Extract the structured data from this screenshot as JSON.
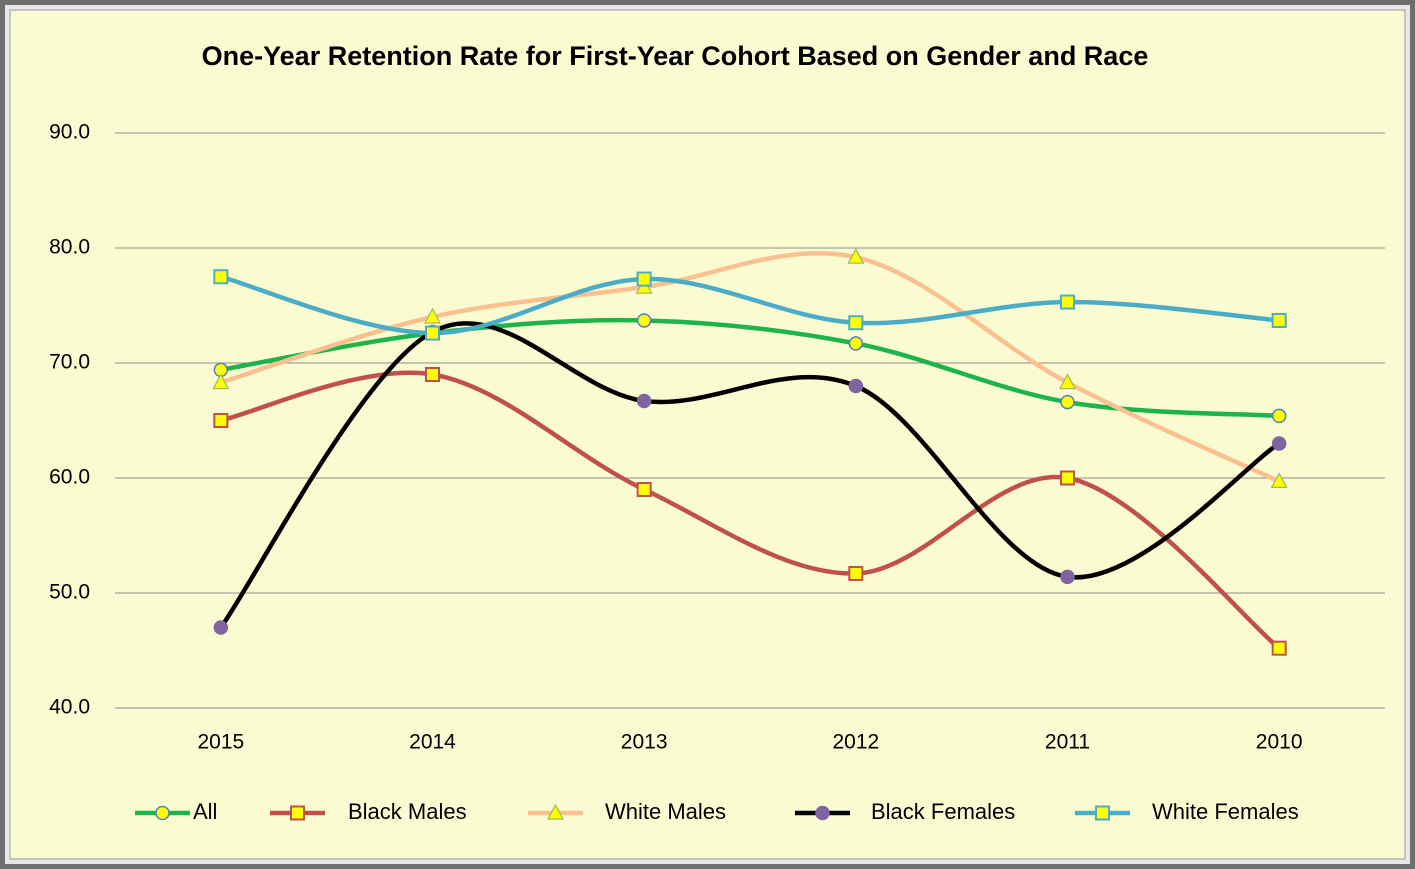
{
  "chart_data": {
    "type": "line",
    "title": "One-Year Retention Rate for First-Year Cohort Based on Gender and Race",
    "categories": [
      "2015",
      "2014",
      "2013",
      "2012",
      "2011",
      "2010"
    ],
    "series": [
      {
        "name": "All",
        "color": "#1fb34b",
        "marker": "circle",
        "marker_fill": "#ffff00",
        "marker_stroke": "#4f81bd",
        "values": [
          69.4,
          72.6,
          73.7,
          71.7,
          66.6,
          65.4
        ]
      },
      {
        "name": "Black Males",
        "color": "#c0504d",
        "marker": "square",
        "marker_fill": "#ffff00",
        "marker_stroke": "#c0504d",
        "values": [
          65.0,
          69.0,
          59.0,
          51.7,
          60.0,
          45.2
        ]
      },
      {
        "name": "White Males",
        "color": "#fac08f",
        "marker": "triangle",
        "marker_fill": "#ffff00",
        "marker_stroke": "#9bbb59",
        "values": [
          68.3,
          74.0,
          76.6,
          79.2,
          68.3,
          59.7
        ]
      },
      {
        "name": "Black Females",
        "color": "#000000",
        "marker": "circle",
        "marker_fill": "#8064a2",
        "marker_stroke": "#8064a2",
        "values": [
          47.0,
          72.7,
          66.7,
          68.0,
          51.4,
          63.0
        ]
      },
      {
        "name": "White Females",
        "color": "#4bacc6",
        "marker": "square",
        "marker_fill": "#ffff00",
        "marker_stroke": "#4bacc6",
        "values": [
          77.5,
          72.6,
          77.3,
          73.5,
          75.3,
          73.7
        ]
      }
    ],
    "ylim": [
      40,
      90
    ],
    "yticks": [
      {
        "value": 40,
        "label": "40.0"
      },
      {
        "value": 50,
        "label": "50.0"
      },
      {
        "value": 60,
        "label": "60.0"
      },
      {
        "value": 70,
        "label": "70.0"
      },
      {
        "value": 80,
        "label": "80.0"
      },
      {
        "value": 90,
        "label": "90.0"
      }
    ],
    "grid": true,
    "smooth": true,
    "legend": "bottom",
    "background": "#fbfbd2"
  }
}
